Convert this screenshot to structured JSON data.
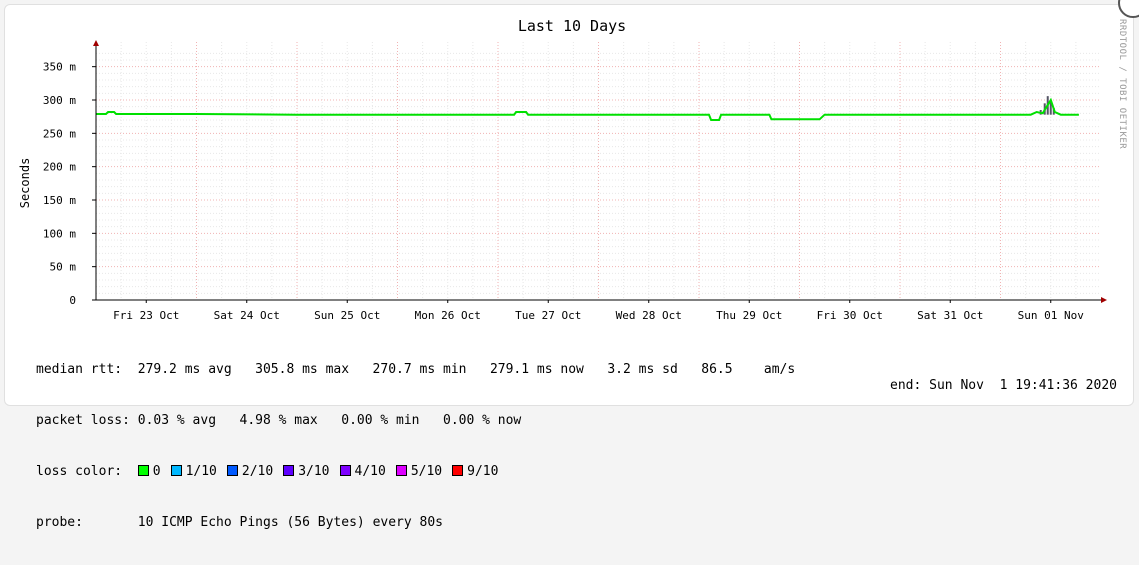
{
  "watermark": "RRDTOOL / TOBI OETIKER",
  "chart_data": {
    "type": "line",
    "title": "Last 10 Days",
    "ylabel": "Seconds",
    "xlabel": "",
    "ylim": [
      0,
      375
    ],
    "ytick_values": [
      0,
      50,
      100,
      150,
      200,
      250,
      300,
      350
    ],
    "ytick_labels": [
      "0",
      "50 m",
      "100 m",
      "150 m",
      "200 m",
      "250 m",
      "300 m",
      "350 m"
    ],
    "x_categories": [
      "Fri 23 Oct",
      "Sat 24 Oct",
      "Sun 25 Oct",
      "Mon 26 Oct",
      "Tue 27 Oct",
      "Wed 28 Oct",
      "Thu 29 Oct",
      "Fri 30 Oct",
      "Sat 31 Oct",
      "Sun 01 Nov"
    ],
    "x_range_days": [
      0,
      10
    ],
    "grid": true,
    "series": [
      {
        "name": "0",
        "color": "#00e000",
        "points": [
          [
            0.0,
            279
          ],
          [
            0.1,
            279
          ],
          [
            0.12,
            282
          ],
          [
            0.18,
            282
          ],
          [
            0.2,
            279
          ],
          [
            1.0,
            279
          ],
          [
            2.0,
            278
          ],
          [
            3.0,
            278
          ],
          [
            4.0,
            278
          ],
          [
            4.16,
            278
          ],
          [
            4.18,
            282
          ],
          [
            4.28,
            282
          ],
          [
            4.3,
            278
          ],
          [
            5.0,
            278
          ],
          [
            6.1,
            278
          ],
          [
            6.12,
            270
          ],
          [
            6.2,
            270
          ],
          [
            6.22,
            278
          ],
          [
            6.7,
            278
          ],
          [
            6.72,
            271
          ],
          [
            7.2,
            271
          ],
          [
            7.25,
            278
          ],
          [
            8.0,
            278
          ],
          [
            9.0,
            278
          ],
          [
            9.3,
            278
          ],
          [
            9.36,
            282
          ],
          [
            9.42,
            280
          ],
          [
            9.46,
            290
          ],
          [
            9.5,
            300
          ],
          [
            9.54,
            282
          ],
          [
            9.6,
            278
          ],
          [
            9.78,
            278
          ]
        ]
      }
    ],
    "spikes": [
      [
        9.4,
        285
      ],
      [
        9.44,
        295
      ],
      [
        9.47,
        305.8
      ],
      [
        9.5,
        298
      ],
      [
        9.53,
        288
      ]
    ],
    "stats": {
      "median_rtt_label": "median rtt:",
      "median_rtt_values": "279.2 ms avg   305.8 ms max   270.7 ms min   279.1 ms now   3.2 ms sd   86.5    am/s",
      "packet_loss_label": "packet loss:",
      "packet_loss_values": "0.03 % avg   4.98 % max   0.00 % min   0.00 % now",
      "loss_color_label": "loss color:",
      "loss_colors": [
        {
          "label": "0",
          "color": "#00ff00"
        },
        {
          "label": "1/10",
          "color": "#00b8ff"
        },
        {
          "label": "2/10",
          "color": "#0059ff"
        },
        {
          "label": "3/10",
          "color": "#5e00ff"
        },
        {
          "label": "4/10",
          "color": "#7e00ff"
        },
        {
          "label": "5/10",
          "color": "#dd00ff"
        },
        {
          "label": "9/10",
          "color": "#ff0000"
        }
      ],
      "probe_label": "probe:",
      "probe_value": "10 ICMP Echo Pings (56 Bytes) every 80s",
      "end_label": "end: Sun Nov  1 19:41:36 2020"
    }
  }
}
